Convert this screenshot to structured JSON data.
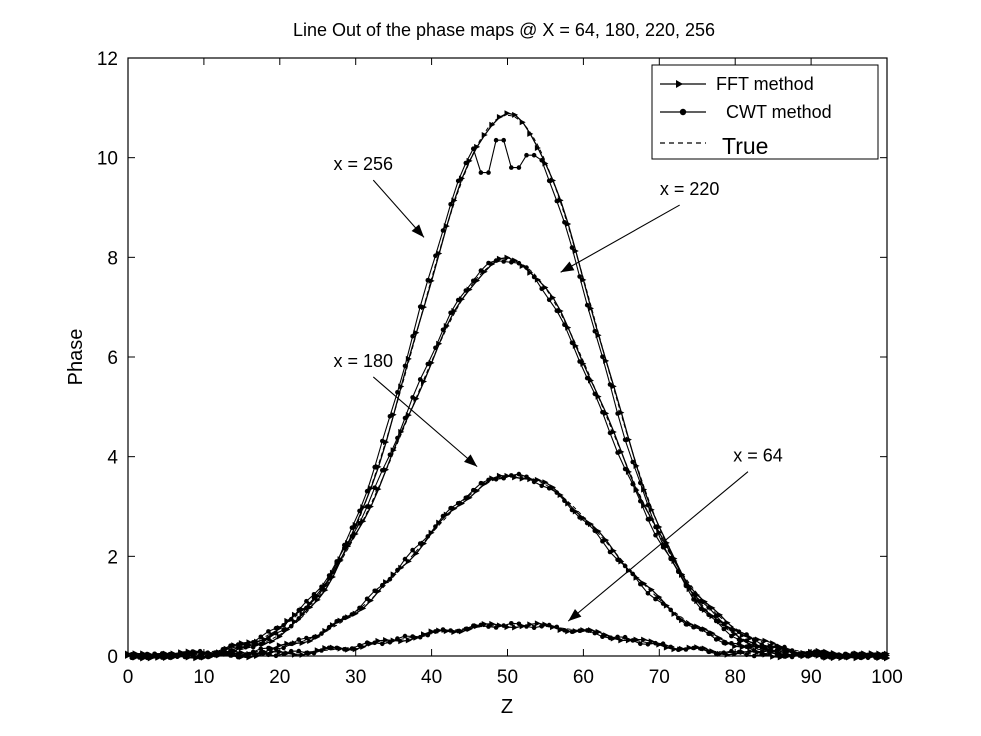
{
  "chart_data": {
    "type": "line",
    "title": "Line Out of the  phase maps @ X = 64, 180, 220, 256",
    "xlabel": "Z",
    "ylabel": "Phase",
    "xlim": [
      0,
      100
    ],
    "ylim": [
      0,
      12
    ],
    "xticks": [
      "0",
      "10",
      "20",
      "30",
      "40",
      "50",
      "60",
      "70",
      "80",
      "90",
      "100"
    ],
    "yticks": [
      "0",
      "2",
      "4",
      "6",
      "8",
      "10",
      "12"
    ],
    "grid": false,
    "legend": {
      "placement": "top-right",
      "entries": [
        "FFT method",
        "CWT method",
        "True"
      ]
    },
    "annotations": [
      {
        "text": "x = 256",
        "label_at": [
          31,
          9.75
        ],
        "arrow_to": [
          39,
          8.4
        ]
      },
      {
        "text": "x = 220",
        "label_at": [
          74,
          9.25
        ],
        "arrow_to": [
          57,
          7.7
        ]
      },
      {
        "text": "x = 180",
        "label_at": [
          31,
          5.8
        ],
        "arrow_to": [
          46,
          3.8
        ]
      },
      {
        "text": "x = 64",
        "label_at": [
          83,
          3.9
        ],
        "arrow_to": [
          58,
          0.7
        ]
      }
    ],
    "series": [
      {
        "x_label": "x = 256",
        "amplitude": 10.85,
        "center": 50,
        "sigma": 11.8,
        "cwt_dips": [
          [
            47,
            9.7
          ],
          [
            49,
            10.35
          ],
          [
            51,
            9.8
          ],
          [
            53,
            10.05
          ]
        ]
      },
      {
        "x_label": "x = 220",
        "amplitude": 7.95,
        "center": 50,
        "sigma": 13.0,
        "cwt_dips": []
      },
      {
        "x_label": "x = 180",
        "amplitude": 3.62,
        "center": 51,
        "sigma": 12.5,
        "cwt_dips": []
      },
      {
        "x_label": "x = 64",
        "amplitude": 0.62,
        "center": 51,
        "sigma": 13.5,
        "cwt_dips": []
      }
    ]
  }
}
